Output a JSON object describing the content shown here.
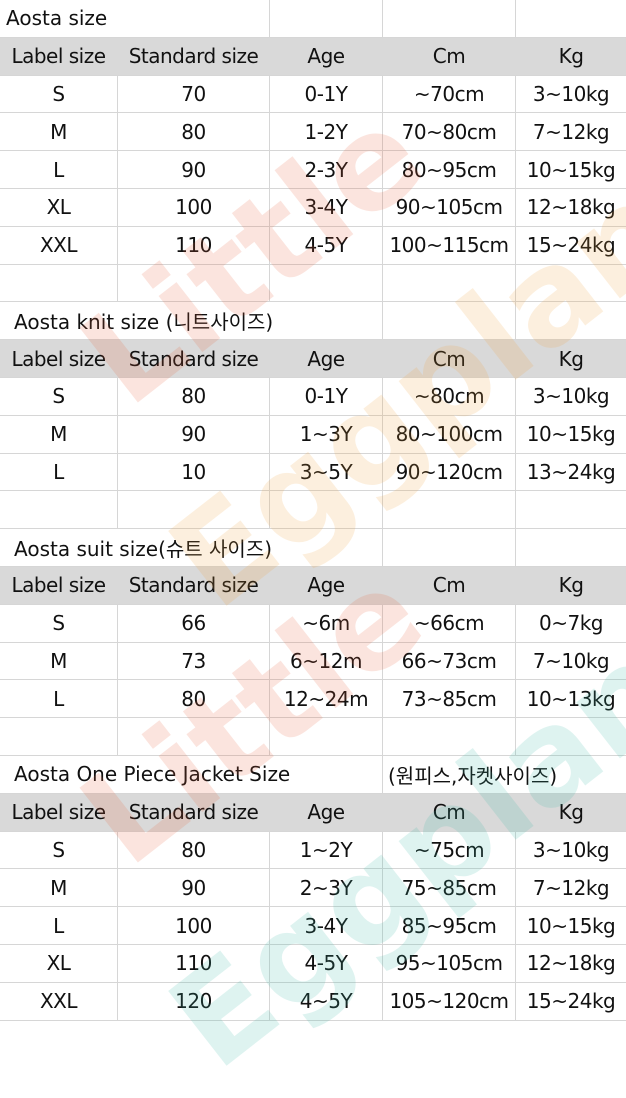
{
  "columns": [
    "Label size",
    "Standard size",
    "Age",
    "Cm",
    "Kg"
  ],
  "watermark": "Little Eggplant",
  "colors": {
    "header_bg": "#d9d9d9",
    "grid": "#d6d6d6"
  },
  "tables": [
    {
      "title": "Aosta size",
      "title_extra": "",
      "rows": [
        [
          "S",
          "70",
          "0-1Y",
          "~70cm",
          "3~10kg"
        ],
        [
          "M",
          "80",
          "1-2Y",
          "70~80cm",
          "7~12kg"
        ],
        [
          "L",
          "90",
          "2-3Y",
          "80~95cm",
          "10~15kg"
        ],
        [
          "XL",
          "100",
          "3-4Y",
          "90~105cm",
          "12~18kg"
        ],
        [
          "XXL",
          "110",
          "4-5Y",
          "100~115cm",
          "15~24kg"
        ]
      ]
    },
    {
      "title": "Aosta knit size (니트사이즈)",
      "title_extra": "",
      "rows": [
        [
          "S",
          "80",
          "0-1Y",
          "~80cm",
          "3~10kg"
        ],
        [
          "M",
          "90",
          "1~3Y",
          "80~100cm",
          "10~15kg"
        ],
        [
          "L",
          "10",
          "3~5Y",
          "90~120cm",
          "13~24kg"
        ]
      ]
    },
    {
      "title": "Aosta suit size(슈트 사이즈)",
      "title_extra": "",
      "rows": [
        [
          "S",
          "66",
          "~6m",
          "~66cm",
          "0~7kg"
        ],
        [
          "M",
          "73",
          "6~12m",
          "66~73cm",
          "7~10kg"
        ],
        [
          "L",
          "80",
          "12~24m",
          "73~85cm",
          "10~13kg"
        ]
      ]
    },
    {
      "title": "Aosta One Piece Jacket Size",
      "title_extra": "(원피스,자켓사이즈)",
      "rows": [
        [
          "S",
          "80",
          "1~2Y",
          "~75cm",
          "3~10kg"
        ],
        [
          "M",
          "90",
          "2~3Y",
          "75~85cm",
          "7~12kg"
        ],
        [
          "L",
          "100",
          "3-4Y",
          "85~95cm",
          "10~15kg"
        ],
        [
          "XL",
          "110",
          "4-5Y",
          "95~105cm",
          "12~18kg"
        ],
        [
          "XXL",
          "120",
          "4~5Y",
          "105~120cm",
          "15~24kg"
        ]
      ]
    }
  ]
}
